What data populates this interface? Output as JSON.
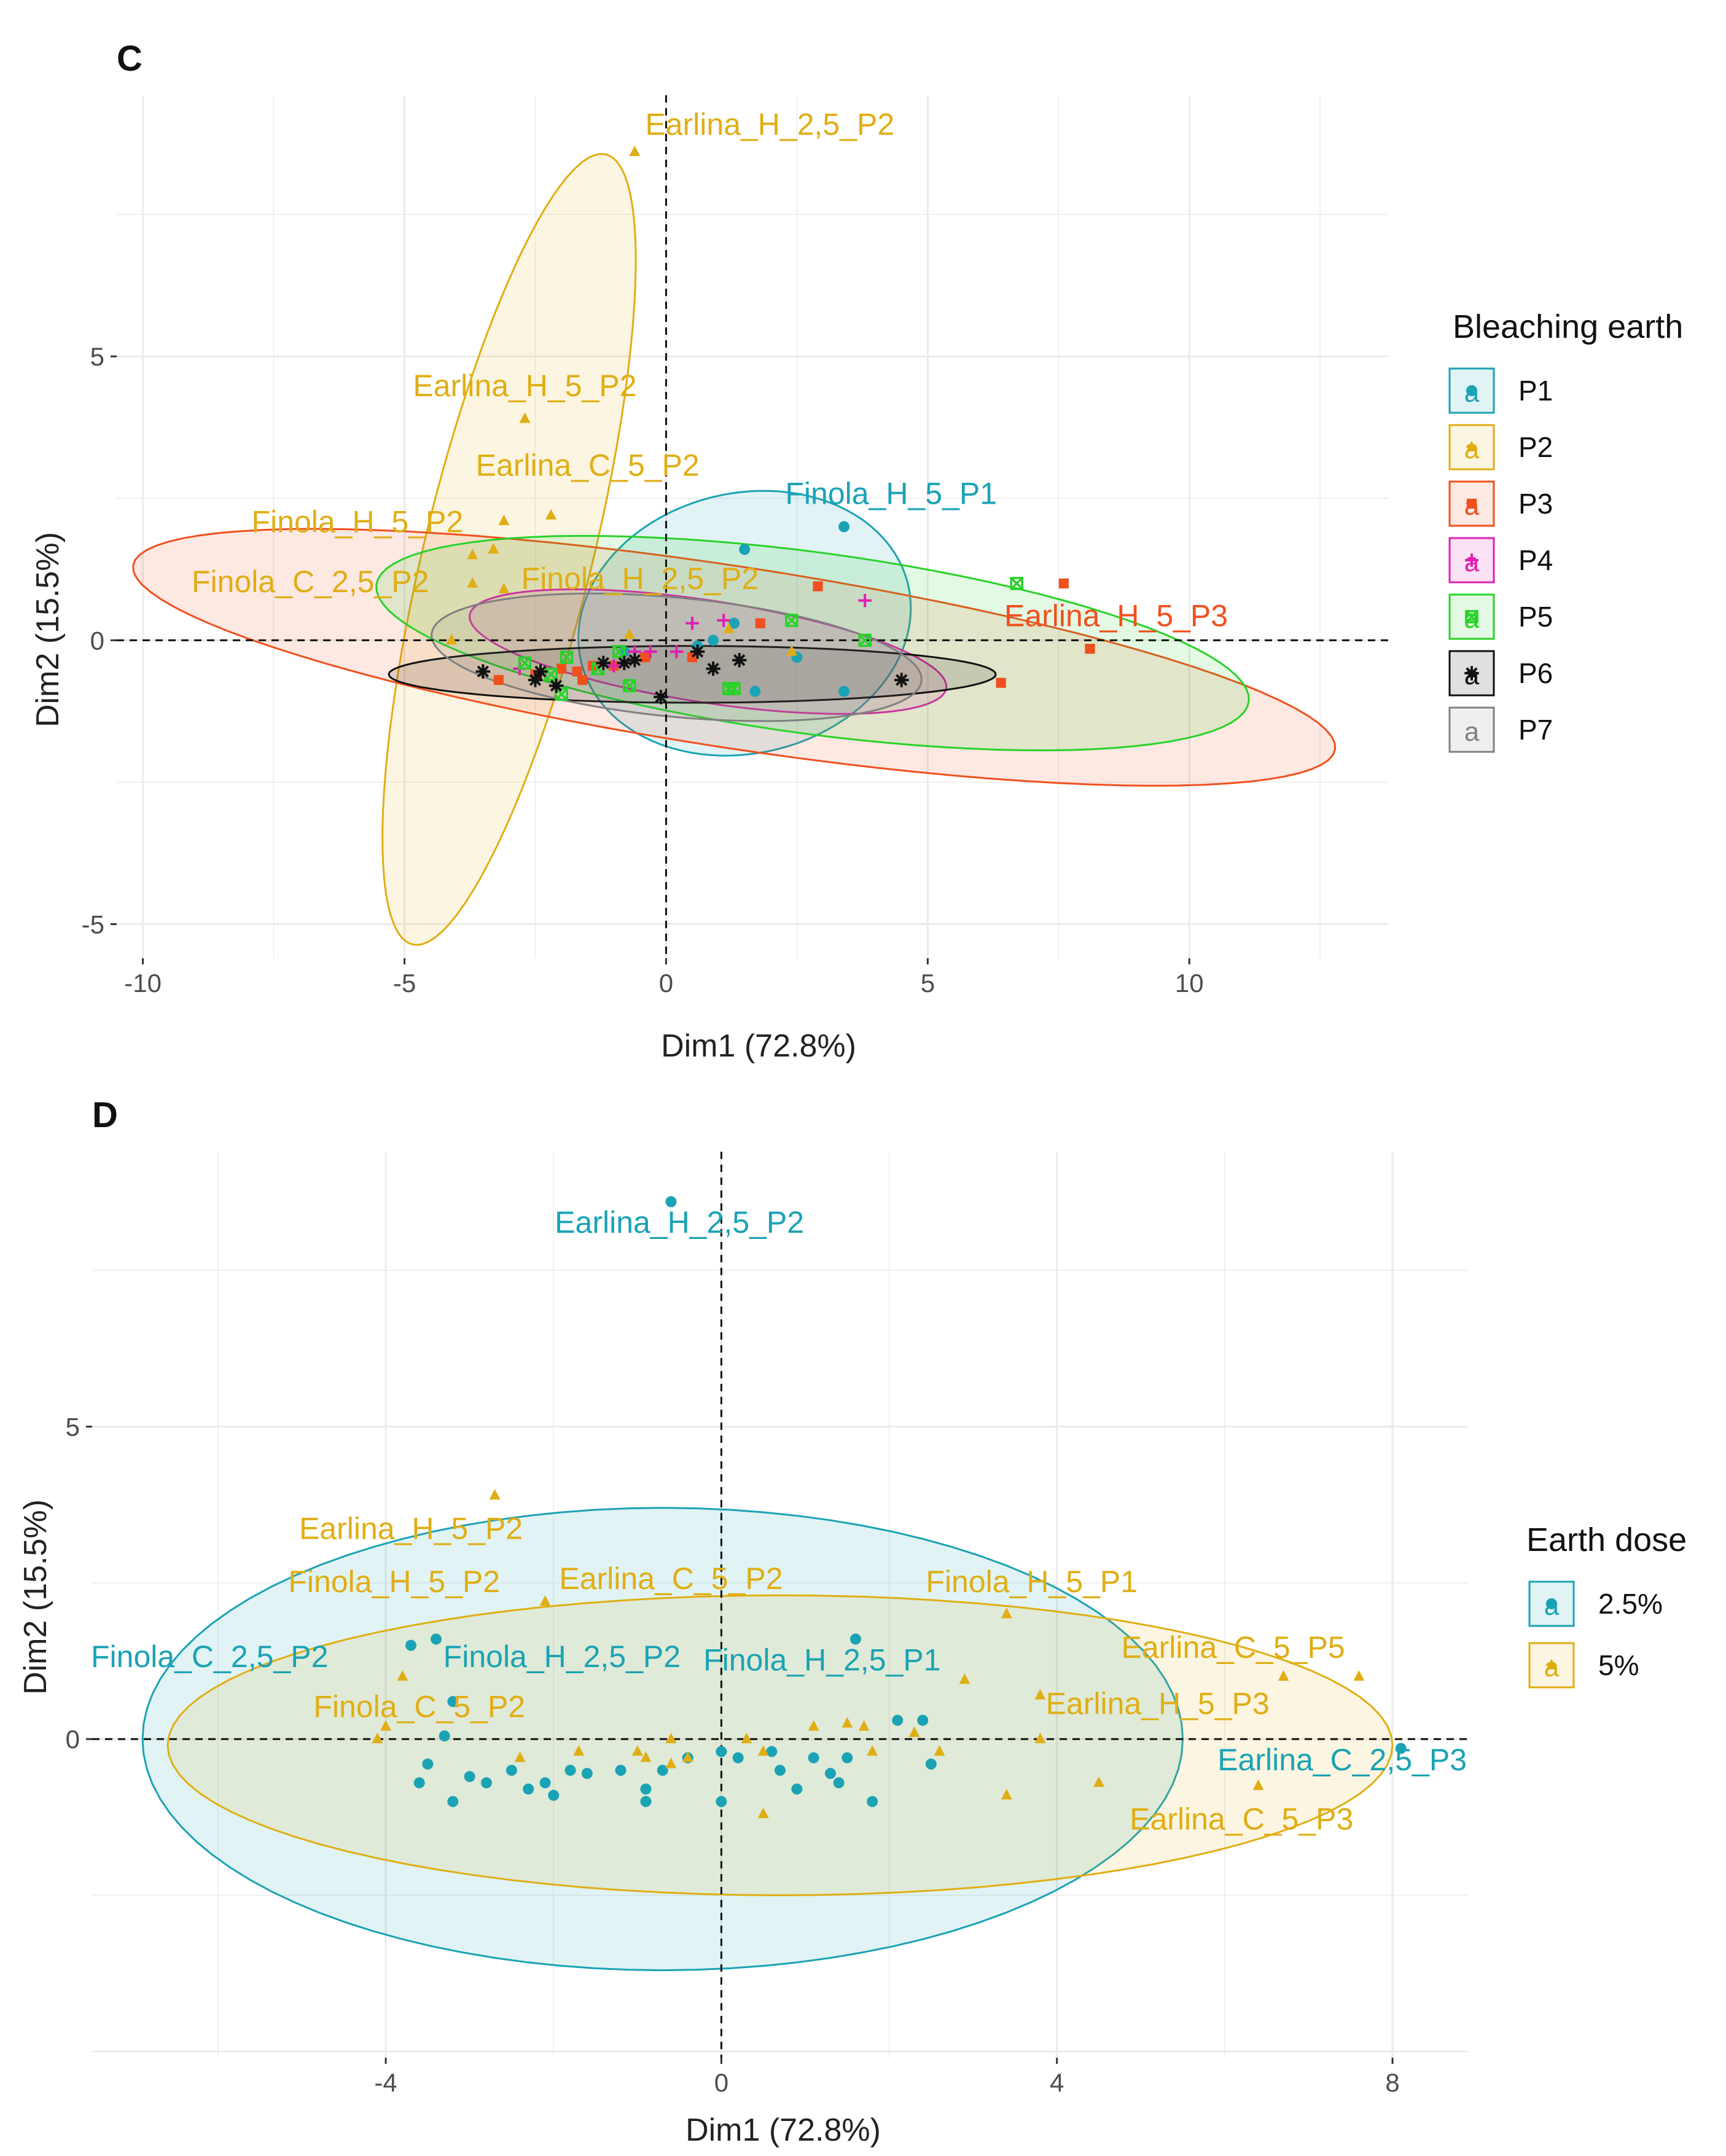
{
  "panel_c": {
    "letter": "C",
    "legend_title": "Bleaching earth",
    "legend": [
      {
        "label": "P1",
        "color": "#1aa3b4",
        "shape": "circle"
      },
      {
        "label": "P2",
        "color": "#e0ae14",
        "shape": "triangle"
      },
      {
        "label": "P3",
        "color": "#f0501e",
        "shape": "square"
      },
      {
        "label": "P4",
        "color": "#e020b0",
        "shape": "plus"
      },
      {
        "label": "P5",
        "color": "#28d228",
        "shape": "boxx"
      },
      {
        "label": "P6",
        "color": "#111111",
        "shape": "star"
      },
      {
        "label": "P7",
        "color": "#808080",
        "shape": "none"
      }
    ]
  },
  "panel_d": {
    "letter": "D",
    "legend_title": "Earth dose",
    "legend": [
      {
        "label": "2.5%",
        "color": "#1aa3b4",
        "shape": "circle"
      },
      {
        "label": "5%",
        "color": "#e0ae14",
        "shape": "triangle"
      }
    ]
  },
  "chart_data": [
    {
      "type": "scatter",
      "title": "C",
      "xlabel": "Dim1 (72.8%)",
      "ylabel": "Dim2 (15.5%)",
      "xlim": [
        -10.5,
        13.8
      ],
      "ylim": [
        -5.6,
        9.6
      ],
      "xticks": [
        -10,
        -5,
        0,
        5,
        10
      ],
      "yticks": [
        -5,
        0,
        5
      ],
      "legend_title": "Bleaching earth",
      "legend_position": "right",
      "series": [
        {
          "name": "P1",
          "color": "#1aa3b4",
          "shape": "circle",
          "points": [
            [
              1.5,
              1.6
            ],
            [
              3.4,
              2.0
            ],
            [
              1.3,
              0.3
            ],
            [
              0.9,
              0
            ],
            [
              2.5,
              -0.3
            ],
            [
              3.4,
              -0.9
            ],
            [
              1.7,
              -0.9
            ],
            [
              -0.8,
              -0.2
            ],
            [
              0.6,
              -0.1
            ]
          ],
          "ellipse": {
            "cx": 1.5,
            "cy": 0.3,
            "rx": 3.2,
            "ry": 2.3,
            "angle": 10
          }
        },
        {
          "name": "P2",
          "color": "#e0ae14",
          "shape": "triangle",
          "points": [
            [
              -0.6,
              8.6
            ],
            [
              -2.7,
              3.9
            ],
            [
              -2.2,
              2.2
            ],
            [
              -3.1,
              2.1
            ],
            [
              -3.3,
              1.6
            ],
            [
              -3.7,
              1.5
            ],
            [
              -3.7,
              1.0
            ],
            [
              -3.1,
              0.9
            ],
            [
              -4.1,
              0.0
            ],
            [
              -0.7,
              0.1
            ],
            [
              1.2,
              0.2
            ],
            [
              2.4,
              -0.2
            ]
          ],
          "ellipse": {
            "cx": -3.0,
            "cy": 1.6,
            "rx": 7.2,
            "ry": 1.6,
            "angle": 75
          }
        },
        {
          "name": "P3",
          "color": "#f0501e",
          "shape": "square",
          "points": [
            [
              7.6,
              1.0
            ],
            [
              8.1,
              -0.15
            ],
            [
              6.4,
              -0.75
            ],
            [
              2.9,
              0.95
            ],
            [
              1.8,
              0.3
            ],
            [
              -2.0,
              -0.5
            ],
            [
              -1.6,
              -0.7
            ],
            [
              -1.4,
              -0.45
            ],
            [
              -1.7,
              -0.55
            ],
            [
              -3.2,
              -0.7
            ],
            [
              -2.5,
              -0.6
            ],
            [
              -1.0,
              -0.45
            ],
            [
              0.5,
              -0.3
            ],
            [
              -0.4,
              -0.3
            ]
          ],
          "ellipse": {
            "cx": 1.3,
            "cy": -0.3,
            "rx": 11.6,
            "ry": 1.6,
            "angle": -8
          }
        },
        {
          "name": "P4",
          "color": "#e020b0",
          "shape": "plus",
          "points": [
            [
              3.8,
              0.7
            ],
            [
              0.5,
              0.3
            ],
            [
              1.1,
              0.35
            ],
            [
              -0.6,
              -0.2
            ],
            [
              -0.3,
              -0.2
            ],
            [
              0.2,
              -0.2
            ],
            [
              -2.8,
              -0.5
            ],
            [
              -1.0,
              -0.45
            ],
            [
              -2.4,
              -0.6
            ]
          ],
          "ellipse": {
            "cx": 0.8,
            "cy": -0.2,
            "rx": 4.6,
            "ry": 0.9,
            "angle": -8
          }
        },
        {
          "name": "P5",
          "color": "#28d228",
          "shape": "boxx",
          "points": [
            [
              6.7,
              1.0
            ],
            [
              2.4,
              0.35
            ],
            [
              3.8,
              0.0
            ],
            [
              -0.9,
              -0.2
            ],
            [
              -1.9,
              -0.3
            ],
            [
              -2.7,
              -0.4
            ],
            [
              -0.7,
              -0.8
            ],
            [
              1.2,
              -0.85
            ],
            [
              1.3,
              -0.85
            ],
            [
              -2.0,
              -0.95
            ],
            [
              -2.2,
              -0.6
            ],
            [
              -1.3,
              -0.5
            ]
          ],
          "ellipse": {
            "cx": 2.8,
            "cy": -0.05,
            "rx": 8.4,
            "ry": 1.6,
            "angle": -7
          }
        },
        {
          "name": "P6",
          "color": "#111111",
          "shape": "star",
          "points": [
            [
              -3.5,
              -0.55
            ],
            [
              -2.5,
              -0.7
            ],
            [
              -2.1,
              -0.8
            ],
            [
              -2.4,
              -0.55
            ],
            [
              -1.2,
              -0.4
            ],
            [
              -0.8,
              -0.4
            ],
            [
              -0.6,
              -0.35
            ],
            [
              0.6,
              -0.2
            ],
            [
              0.9,
              -0.5
            ],
            [
              1.4,
              -0.35
            ],
            [
              4.5,
              -0.7
            ],
            [
              -0.1,
              -1.0
            ]
          ],
          "ellipse": {
            "cx": 0.5,
            "cy": -0.6,
            "rx": 5.8,
            "ry": 0.5,
            "angle": 0
          }
        },
        {
          "name": "P7",
          "color": "#808080",
          "shape": "none",
          "points": [],
          "ellipse": {
            "cx": 0.2,
            "cy": -0.3,
            "rx": 4.7,
            "ry": 1.05,
            "angle": -5
          }
        }
      ],
      "annotations": [
        {
          "text": "Earlina_H_2,5_P2",
          "x": -0.4,
          "y": 8.9,
          "color": "#e0ae14",
          "anchor": "start"
        },
        {
          "text": "Earlina_H_5_P2",
          "x": -2.7,
          "y": 4.3,
          "color": "#e0ae14",
          "anchor": "middle"
        },
        {
          "text": "Earlina_C_5_P2",
          "x": -1.5,
          "y": 2.9,
          "color": "#e0ae14",
          "anchor": "middle"
        },
        {
          "text": "Finola_H_5_P2",
          "x": -5.9,
          "y": 1.9,
          "color": "#e0ae14",
          "anchor": "middle"
        },
        {
          "text": "Finola_C_2,5_P2",
          "x": -6.8,
          "y": 0.85,
          "color": "#e0ae14",
          "anchor": "middle"
        },
        {
          "text": "Finola_H_2,5_P2",
          "x": -0.5,
          "y": 0.9,
          "color": "#e0ae14",
          "anchor": "middle"
        },
        {
          "text": "Finola_H_5_P1",
          "x": 4.3,
          "y": 2.4,
          "color": "#1aa3b4",
          "anchor": "middle"
        },
        {
          "text": "Earlina_H_5_P3",
          "x": 8.6,
          "y": 0.25,
          "color": "#f0501e",
          "anchor": "middle"
        }
      ]
    },
    {
      "type": "scatter",
      "title": "D",
      "xlabel": "Dim1 (72.8%)",
      "ylabel": "Dim2 (15.5%)",
      "xlim": [
        -7.5,
        8.9
      ],
      "ylim": [
        -5.1,
        9.4
      ],
      "xticks": [
        -4,
        0,
        4,
        8
      ],
      "yticks": [
        0,
        5
      ],
      "legend_title": "Earth dose",
      "legend_position": "right",
      "series": [
        {
          "name": "2.5%",
          "color": "#1aa3b4",
          "shape": "circle",
          "points": [
            [
              -0.6,
              8.6
            ],
            [
              1.6,
              1.6
            ],
            [
              2.1,
              0.3
            ],
            [
              2.4,
              0.3
            ],
            [
              0,
              -0.2
            ],
            [
              0.2,
              -0.3
            ],
            [
              0.6,
              -0.2
            ],
            [
              1.1,
              -0.3
            ],
            [
              1.5,
              -0.3
            ],
            [
              2.5,
              -0.4
            ],
            [
              -3.0,
              -0.6
            ],
            [
              -2.5,
              -0.5
            ],
            [
              -2.8,
              -0.7
            ],
            [
              -2.1,
              -0.7
            ],
            [
              -2.0,
              -0.9
            ],
            [
              -1.6,
              -0.55
            ],
            [
              -1.2,
              -0.5
            ],
            [
              -0.9,
              -0.8
            ],
            [
              -0.7,
              -0.5
            ],
            [
              -0.9,
              -1.0
            ],
            [
              -3.6,
              -0.7
            ],
            [
              -3.2,
              -1.0
            ],
            [
              -3.5,
              -0.4
            ],
            [
              -1.8,
              -0.5
            ],
            [
              -0.0,
              -1.0
            ],
            [
              0.7,
              -0.5
            ],
            [
              0.9,
              -0.8
            ],
            [
              1.4,
              -0.7
            ],
            [
              1.8,
              -1.0
            ],
            [
              1.3,
              -0.55
            ],
            [
              -2.3,
              -0.8
            ],
            [
              -0.4,
              -0.3
            ],
            [
              8.1,
              -0.15
            ],
            [
              -3.3,
              0.05
            ],
            [
              -3.4,
              1.6
            ],
            [
              -3.7,
              1.5
            ],
            [
              -3.2,
              0.6
            ]
          ],
          "ellipse": {
            "cx": -0.7,
            "cy": 0.0,
            "rx": 6.2,
            "ry": 3.7,
            "angle": 0
          }
        },
        {
          "name": "5%",
          "color": "#e0ae14",
          "shape": "triangle",
          "points": [
            [
              -2.7,
              3.9
            ],
            [
              -2.1,
              2.2
            ],
            [
              -3.8,
              1.0
            ],
            [
              -4.0,
              0.2
            ],
            [
              -4.1,
              0.0
            ],
            [
              3.4,
              2.0
            ],
            [
              3.8,
              0.7
            ],
            [
              6.7,
              1.0
            ],
            [
              7.6,
              1.0
            ],
            [
              3.8,
              0.0
            ],
            [
              4.5,
              -0.7
            ],
            [
              6.4,
              -0.75
            ],
            [
              3.4,
              -0.9
            ],
            [
              2.9,
              0.95
            ],
            [
              1.1,
              0.2
            ],
            [
              1.5,
              0.25
            ],
            [
              1.7,
              0.2
            ],
            [
              2.3,
              0.1
            ],
            [
              -0.6,
              0.0
            ],
            [
              -0.9,
              -0.3
            ],
            [
              0.3,
              0.0
            ],
            [
              0.5,
              -0.2
            ],
            [
              1.8,
              -0.2
            ],
            [
              2.6,
              -0.2
            ],
            [
              -1.7,
              -0.2
            ],
            [
              -2.4,
              -0.3
            ],
            [
              -0.4,
              -0.3
            ],
            [
              0.5,
              -1.2
            ],
            [
              -0.6,
              -0.4
            ],
            [
              -1.0,
              -0.2
            ]
          ],
          "ellipse": {
            "cx": 0.7,
            "cy": -0.1,
            "rx": 7.3,
            "ry": 2.4,
            "angle": 0
          }
        }
      ],
      "annotations": [
        {
          "text": "Earlina_H_2,5_P2",
          "x": -0.5,
          "y": 8.1,
          "color": "#1aa3b4",
          "anchor": "middle"
        },
        {
          "text": "Earlina_H_5_P2",
          "x": -3.7,
          "y": 3.2,
          "color": "#e0ae14",
          "anchor": "middle"
        },
        {
          "text": "Finola_H_5_P2",
          "x": -3.9,
          "y": 2.35,
          "color": "#e0ae14",
          "anchor": "middle"
        },
        {
          "text": "Earlina_C_5_P2",
          "x": -0.6,
          "y": 2.4,
          "color": "#e0ae14",
          "anchor": "middle"
        },
        {
          "text": "Finola_H_5_P1",
          "x": 3.7,
          "y": 2.35,
          "color": "#e0ae14",
          "anchor": "middle"
        },
        {
          "text": "Earlina_C_5_P5",
          "x": 6.1,
          "y": 1.3,
          "color": "#e0ae14",
          "anchor": "middle"
        },
        {
          "text": "Finola_C_2,5_P2",
          "x": -6.1,
          "y": 1.15,
          "color": "#1aa3b4",
          "anchor": "middle"
        },
        {
          "text": "Finola_H_2,5_P2",
          "x": -1.9,
          "y": 1.15,
          "color": "#1aa3b4",
          "anchor": "middle"
        },
        {
          "text": "Finola_H_2,5_P1",
          "x": 1.2,
          "y": 1.1,
          "color": "#1aa3b4",
          "anchor": "middle"
        },
        {
          "text": "Earlina_H_5_P3",
          "x": 5.2,
          "y": 0.4,
          "color": "#e0ae14",
          "anchor": "middle"
        },
        {
          "text": "Finola_C_5_P2",
          "x": -3.6,
          "y": 0.35,
          "color": "#e0ae14",
          "anchor": "middle"
        },
        {
          "text": "Earlina_C_2,5_P3",
          "x": 7.4,
          "y": -0.5,
          "color": "#1aa3b4",
          "anchor": "middle"
        },
        {
          "text": "Earlina_C_5_P3",
          "x": 6.2,
          "y": -1.45,
          "color": "#e0ae14",
          "anchor": "middle"
        }
      ]
    }
  ]
}
